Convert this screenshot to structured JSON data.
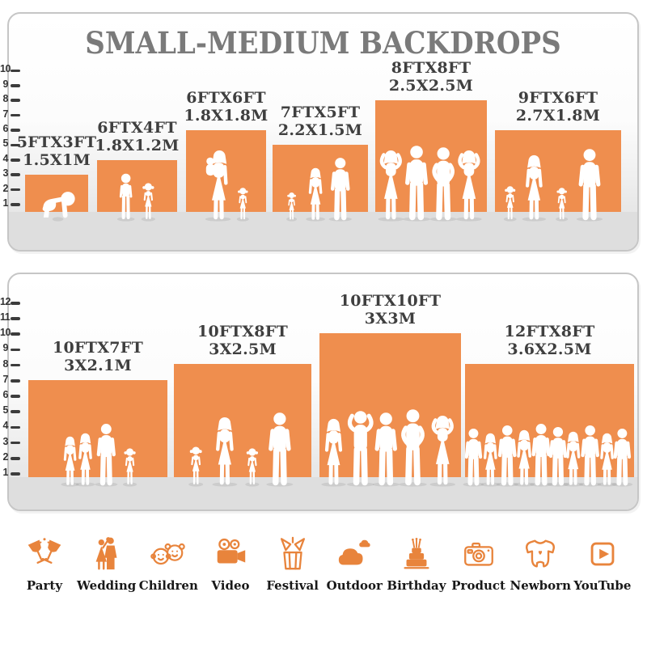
{
  "title": "SMALL-MEDIUM BACKDROPS",
  "colors": {
    "bar": "#EF8E4E",
    "icon": "#E8843C",
    "title_gray": "#7A7A7A",
    "label_dark": "#3F3F3F"
  },
  "panels": [
    {
      "name": "small-backdrops",
      "ruler": {
        "min": 1,
        "max": 10
      },
      "bars": [
        {
          "ft": "5FTX3FT",
          "m": "1.5X1M",
          "width_ft": 5,
          "height_ft": 3,
          "figures": [
            "crawling-baby"
          ]
        },
        {
          "ft": "6FTX4FT",
          "m": "1.8X1.2M",
          "width_ft": 6,
          "height_ft": 4,
          "figures": [
            "boy",
            "girl"
          ]
        },
        {
          "ft": "6FTX6FT",
          "m": "1.8X1.8M",
          "width_ft": 6,
          "height_ft": 6,
          "figures": [
            "woman-carrying-child",
            "girl"
          ]
        },
        {
          "ft": "7FTX5FT",
          "m": "2.2X1.5M",
          "width_ft": 7,
          "height_ft": 5,
          "figures": [
            "girl",
            "woman",
            "man"
          ]
        },
        {
          "ft": "8FTX8FT",
          "m": "2.5X2.5M",
          "width_ft": 8,
          "height_ft": 8,
          "figures": [
            "woman-arms-up",
            "man",
            "man-hands-on-hips",
            "woman-arms-up"
          ]
        },
        {
          "ft": "9FTX6FT",
          "m": "2.7X1.8M",
          "width_ft": 9,
          "height_ft": 6,
          "figures": [
            "girl",
            "woman",
            "girl",
            "man"
          ]
        }
      ]
    },
    {
      "name": "medium-backdrops",
      "ruler": {
        "min": 1,
        "max": 12
      },
      "bars": [
        {
          "ft": "10FTX7FT",
          "m": "3X2.1M",
          "width_ft": 10,
          "height_ft": 7,
          "figures": [
            "woman",
            "woman",
            "man",
            "girl"
          ]
        },
        {
          "ft": "10FTX8FT",
          "m": "3X2.5M",
          "width_ft": 10,
          "height_ft": 8,
          "figures": [
            "girl",
            "woman",
            "girl",
            "man"
          ]
        },
        {
          "ft": "10FTX10FT",
          "m": "3X3M",
          "width_ft": 10,
          "height_ft": 10,
          "figures": [
            "woman",
            "man-arms-up",
            "man",
            "man-hands-on-hips",
            "woman-arms-up"
          ]
        },
        {
          "ft": "12FTX8FT",
          "m": "3.6X2.5M",
          "width_ft": 12,
          "height_ft": 8,
          "figures": [
            "man",
            "woman",
            "man",
            "woman",
            "man",
            "man",
            "woman",
            "man",
            "woman",
            "man"
          ]
        }
      ]
    }
  ],
  "categories": [
    {
      "label": "Party",
      "icon": "party-icon"
    },
    {
      "label": "Wedding",
      "icon": "wedding-icon"
    },
    {
      "label": "Children",
      "icon": "children-icon"
    },
    {
      "label": "Video",
      "icon": "video-icon"
    },
    {
      "label": "Festival",
      "icon": "festival-icon"
    },
    {
      "label": "Outdoor",
      "icon": "outdoor-icon"
    },
    {
      "label": "Birthday",
      "icon": "birthday-icon"
    },
    {
      "label": "Product",
      "icon": "product-icon"
    },
    {
      "label": "Newborn",
      "icon": "newborn-icon"
    },
    {
      "label": "YouTube",
      "icon": "youtube-icon"
    }
  ]
}
